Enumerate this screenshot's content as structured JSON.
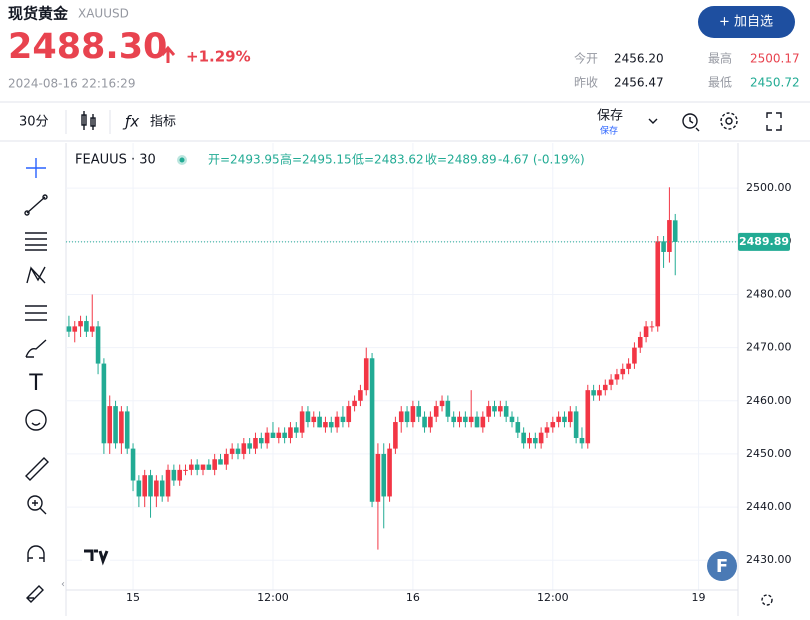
{
  "header": {
    "title": "现货黄金",
    "symbol": "XAUUSD",
    "price": "2488.30",
    "change": "+1.29%",
    "datetime": "2024-08-16 22:16:29",
    "button": "+ 加自选",
    "stats": [
      {
        "label": "今开",
        "value": "2456.20"
      },
      {
        "label": "最高",
        "value": "2500.17"
      },
      {
        "label": "昨收",
        "value": "2456.47"
      },
      {
        "label": "最低",
        "value": "2450.72"
      }
    ]
  },
  "toolbar": {
    "interval": "30分",
    "indicators": "指标",
    "save": "保存",
    "save_sub": "保存"
  },
  "legend": {
    "symbol": "FEAUUS · 30",
    "items": [
      "开=2493.95",
      "高=2495.15",
      "低=2483.62",
      "收=2489.89",
      "-4.67 (-0.19%)"
    ]
  },
  "chart_data": {
    "type": "candlestick",
    "up_color": "#f23645",
    "down_color": "#22ab94",
    "grid": true,
    "categories": [
      null,
      null,
      null,
      null,
      null,
      null,
      null,
      null,
      null,
      null,
      null,
      "15",
      null,
      null,
      null,
      null,
      null,
      null,
      null,
      null,
      null,
      null,
      null,
      null,
      null,
      null,
      null,
      null,
      null,
      null,
      null,
      null,
      null,
      null,
      null,
      "12:00",
      null,
      null,
      null,
      null,
      null,
      null,
      null,
      null,
      null,
      null,
      null,
      null,
      null,
      null,
      null,
      null,
      null,
      null,
      null,
      null,
      null,
      null,
      null,
      "16",
      null,
      null,
      null,
      null,
      null,
      null,
      null,
      null,
      null,
      null,
      null,
      null,
      null,
      null,
      null,
      null,
      null,
      null,
      null,
      null,
      null,
      null,
      null,
      "12:00",
      null,
      null,
      null,
      null,
      null,
      null,
      null,
      null,
      null,
      null,
      null,
      null,
      null,
      null,
      null,
      null,
      null,
      null,
      null,
      null,
      null,
      null,
      null,
      null,
      "19"
    ],
    "open": [
      2474,
      2473,
      2474,
      2475,
      2473,
      2474,
      2467,
      2452,
      2459,
      2452,
      2458,
      2451,
      2445,
      2442,
      2446,
      2442,
      2445,
      2442,
      2447,
      2445,
      2447,
      2447,
      2448,
      2447,
      2448,
      2447,
      2449,
      2448,
      2450,
      2451,
      2450,
      2452,
      2451,
      2453,
      2452,
      2454,
      2453,
      2454,
      2453,
      2455,
      2454,
      2458,
      2456,
      2457,
      2455,
      2456,
      2455,
      2457,
      2456,
      2459,
      2460,
      2462,
      2468,
      2441,
      2450,
      2442,
      2451,
      2456,
      2458,
      2456,
      2459,
      2457,
      2455,
      2457,
      2459,
      2460,
      2457,
      2456,
      2457,
      2456,
      2457,
      2455,
      2457,
      2459,
      2458,
      2459,
      2457,
      2456,
      2454,
      2452,
      2453,
      2452,
      2454,
      2455,
      2456,
      2457,
      2456,
      2458,
      2453,
      2452,
      2462,
      2461,
      2462,
      2463,
      2464,
      2465,
      2466,
      2467,
      2470,
      2472,
      2474,
      2474,
      2490,
      2488,
      2493.95,
      null,
      null,
      null,
      null
    ],
    "high": [
      2476,
      2475,
      2476,
      2476,
      2480,
      2475,
      2468,
      2461,
      2460,
      2459,
      2459,
      2452,
      2446,
      2447,
      2447,
      2446,
      2446,
      2448,
      2448,
      2448,
      2448,
      2449,
      2449,
      2448,
      2449,
      2450,
      2450,
      2451,
      2452,
      2452,
      2453,
      2453,
      2454,
      2454,
      2455,
      2456,
      2455,
      2455,
      2456,
      2456,
      2459,
      2459,
      2458,
      2458,
      2457,
      2457,
      2458,
      2459,
      2460,
      2461,
      2463,
      2470,
      2469,
      2452,
      2452,
      2452,
      2457,
      2459,
      2459,
      2460,
      2460,
      2458,
      2458,
      2460,
      2461,
      2461,
      2458,
      2458,
      2458,
      2462,
      2458,
      2458,
      2460,
      2460,
      2460,
      2460,
      2458,
      2457,
      2455,
      2454,
      2454,
      2455,
      2456,
      2457,
      2458,
      2458,
      2459,
      2459,
      2455,
      2463,
      2463,
      2463,
      2464,
      2465,
      2466,
      2467,
      2468,
      2471,
      2473,
      2475,
      2475,
      2491,
      2491,
      2500.17,
      2495.15,
      null,
      null,
      null,
      null
    ],
    "low": [
      2472,
      2471,
      2472,
      2472,
      2472,
      2465,
      2450,
      2450,
      2451,
      2450,
      2450,
      2443,
      2440,
      2440,
      2438,
      2440,
      2441,
      2441,
      2444,
      2444,
      2446,
      2446,
      2446,
      2446,
      2447,
      2446,
      2448,
      2447,
      2449,
      2449,
      2449,
      2450,
      2450,
      2451,
      2451,
      2453,
      2452,
      2452,
      2452,
      2453,
      2453,
      2455,
      2455,
      2455,
      2454,
      2454,
      2454,
      2455,
      2455,
      2458,
      2459,
      2461,
      2440,
      2432,
      2436,
      2441,
      2450,
      2454,
      2455,
      2455,
      2456,
      2454,
      2454,
      2456,
      2458,
      2456,
      2455,
      2455,
      2455,
      2455,
      2455,
      2454,
      2456,
      2457,
      2457,
      2456,
      2455,
      2453,
      2451,
      2451,
      2451,
      2451,
      2453,
      2454,
      2455,
      2455,
      2455,
      2452,
      2451,
      2451,
      2460,
      2460,
      2461,
      2462,
      2463,
      2464,
      2465,
      2466,
      2469,
      2471,
      2473,
      2473,
      2485,
      2486,
      2483.62,
      null,
      null,
      null,
      null
    ],
    "close": [
      2473,
      2474,
      2475,
      2473,
      2474,
      2467,
      2452,
      2459,
      2452,
      2458,
      2451,
      2445,
      2442,
      2446,
      2442,
      2445,
      2442,
      2447,
      2445,
      2447,
      2447,
      2448,
      2447,
      2448,
      2447,
      2449,
      2448,
      2450,
      2451,
      2450,
      2452,
      2451,
      2453,
      2452,
      2454,
      2453,
      2454,
      2453,
      2455,
      2454,
      2458,
      2456,
      2457,
      2455,
      2456,
      2455,
      2457,
      2456,
      2459,
      2460,
      2462,
      2468,
      2441,
      2450,
      2442,
      2451,
      2456,
      2458,
      2456,
      2459,
      2457,
      2455,
      2457,
      2459,
      2460,
      2457,
      2456,
      2457,
      2456,
      2457,
      2455,
      2457,
      2459,
      2458,
      2459,
      2457,
      2456,
      2454,
      2452,
      2453,
      2452,
      2454,
      2455,
      2456,
      2457,
      2456,
      2458,
      2453,
      2452,
      2462,
      2461,
      2462,
      2463,
      2464,
      2465,
      2466,
      2467,
      2470,
      2472,
      2474,
      2474,
      2490,
      2488,
      2494,
      2489.89,
      null,
      null,
      null,
      null
    ],
    "last_price": 2489.89,
    "ylim": [
      2424.4,
      2508.5
    ],
    "yticks": [
      {
        "value": 2430,
        "label": "2430.00"
      },
      {
        "value": 2440,
        "label": "2440.00"
      },
      {
        "value": 2450,
        "label": "2450.00"
      },
      {
        "value": 2460,
        "label": "2460.00"
      },
      {
        "value": 2470,
        "label": "2470.00"
      },
      {
        "value": 2480,
        "label": "2480.00"
      },
      {
        "value": 2490,
        "label": "2490.00"
      },
      {
        "value": 2500,
        "label": "2500.00"
      }
    ]
  }
}
